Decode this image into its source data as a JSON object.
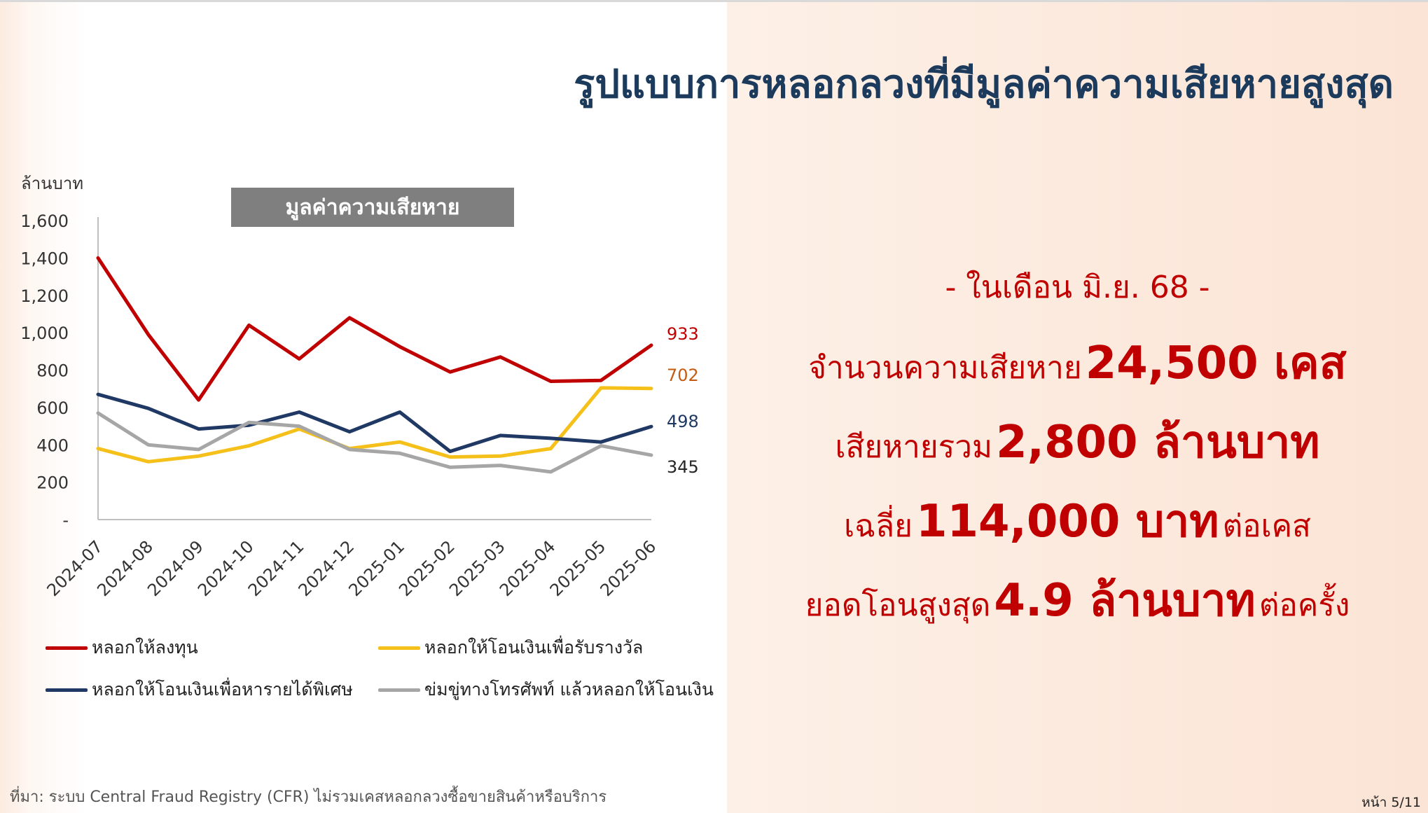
{
  "title": "รูปแบบการหลอกลวงที่มีมูลค่าความเสียหายสูงสุด",
  "chart_data": {
    "type": "line",
    "title": "มูลค่าความเสียหาย",
    "ylabel": "ล้านบาท",
    "ylim": [
      0,
      1600
    ],
    "yticks": [
      "-",
      "200",
      "400",
      "600",
      "800",
      "1,000",
      "1,200",
      "1,400",
      "1,600"
    ],
    "categories": [
      "2024-07",
      "2024-08",
      "2024-09",
      "2024-10",
      "2024-11",
      "2024-12",
      "2025-01",
      "2025-02",
      "2025-03",
      "2025-04",
      "2025-05",
      "2025-06"
    ],
    "grid": false,
    "legend_position": "bottom",
    "series": [
      {
        "name": "หลอกให้ลงทุน",
        "color": "#c00000",
        "end_label": "933",
        "values": [
          1400,
          990,
          640,
          1040,
          860,
          1080,
          925,
          790,
          870,
          740,
          745,
          933
        ]
      },
      {
        "name": "หลอกให้โอนเงินเพื่อรับรางวัล",
        "color": "#f5c019",
        "end_label": "702",
        "values": [
          380,
          310,
          340,
          395,
          485,
          380,
          415,
          335,
          340,
          380,
          705,
          702
        ]
      },
      {
        "name": "หลอกให้โอนเงินเพื่อหารายได้พิเศษ",
        "color": "#1f3864",
        "end_label": "498",
        "values": [
          670,
          595,
          485,
          505,
          575,
          470,
          575,
          365,
          450,
          435,
          415,
          498
        ]
      },
      {
        "name": "ข่มขู่ทางโทรศัพท์ แล้วหลอกให้โอนเงิน",
        "color": "#a6a6a6",
        "end_label": "345",
        "values": [
          570,
          400,
          375,
          520,
          500,
          375,
          355,
          280,
          290,
          255,
          395,
          345
        ]
      }
    ],
    "end_label_colors": [
      "#c00000",
      "#c55a11",
      "#1f3864",
      "#262626"
    ]
  },
  "stats": {
    "period": "- ในเดือน มิ.ย. 68 -",
    "cases_label": "จำนวนความเสียหาย",
    "cases_value": "24,500 เคส",
    "total_label": "เสียหายรวม",
    "total_value": "2,800 ล้านบาท",
    "avg_label": "เฉลี่ย",
    "avg_value": "114,000 บาท",
    "avg_suffix": "ต่อเคส",
    "max_label": "ยอดโอนสูงสุด",
    "max_value": "4.9 ล้านบาท",
    "max_suffix": "ต่อครั้ง"
  },
  "footer": {
    "source": "ที่มา: ระบบ Central Fraud Registry (CFR) ไม่รวมเคสหลอกลวงซื้อขายสินค้าหรือบริการ",
    "page": "หน้า 5/11"
  }
}
